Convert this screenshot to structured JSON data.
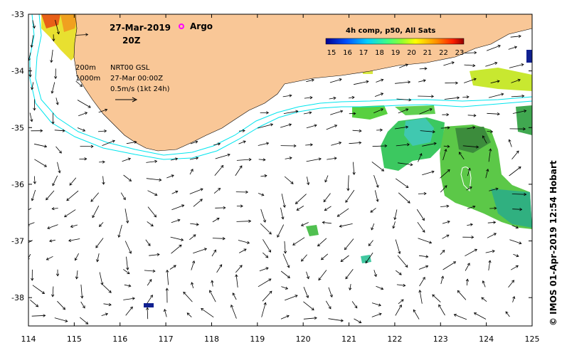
{
  "map": {
    "date_title": "27-Mar-2019",
    "time_title": "20Z",
    "argo_label": "Argo",
    "legend_title": "4h comp, p50, All Sats",
    "legend_ticks": [
      "15",
      "16",
      "17",
      "18",
      "19",
      "20",
      "21",
      "22",
      "23"
    ],
    "depth_labels": [
      "200m",
      "1000m"
    ],
    "info_lines": [
      "NRT00 GSL",
      "27-Mar 00:00Z",
      "0.5m/s (1kt 24h)"
    ],
    "credit": "© IMOS 01-Apr-2019 12:54 Hobart",
    "x_ticks": [
      "114",
      "115",
      "116",
      "117",
      "118",
      "119",
      "120",
      "121",
      "122",
      "123",
      "124",
      "125"
    ],
    "y_ticks": [
      "-33",
      "-34",
      "-35",
      "-36",
      "-37",
      "-38"
    ],
    "lon_range": [
      114,
      125
    ],
    "lat_range": [
      -33,
      -38.5
    ],
    "colors": {
      "land": "#f9c797",
      "isobath": "#00e5ee",
      "argo": "#ff00ff"
    }
  }
}
